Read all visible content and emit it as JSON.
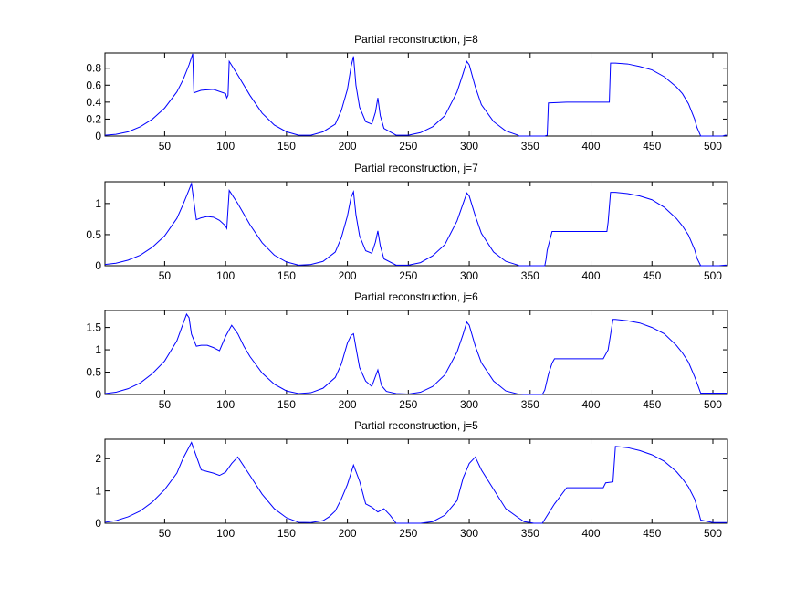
{
  "figure": {
    "background": "#ffffff",
    "line_color": "#0000ff"
  },
  "chart_data": [
    {
      "type": "line",
      "title": "Partial reconstruction, j=8",
      "xlim": [
        1,
        512
      ],
      "ylim": [
        0,
        0.98
      ],
      "xticks": [
        50,
        100,
        150,
        200,
        250,
        300,
        350,
        400,
        450,
        500
      ],
      "xtick_labels": [
        "50",
        "100",
        "150",
        "200",
        "250",
        "300",
        "350",
        "400",
        "450",
        "500"
      ],
      "yticks": [
        0,
        0.2,
        0.4,
        0.6,
        0.8
      ],
      "ytick_labels": [
        "0",
        "0.2",
        "0.4",
        "0.6",
        "0.8"
      ],
      "grid": false,
      "x": [
        1,
        10,
        20,
        30,
        40,
        50,
        60,
        65,
        70,
        73,
        74,
        80,
        90,
        100,
        101,
        102,
        103,
        110,
        120,
        130,
        140,
        150,
        160,
        170,
        180,
        190,
        195,
        200,
        203,
        205,
        207,
        210,
        215,
        220,
        223,
        225,
        227,
        230,
        240,
        250,
        260,
        270,
        280,
        290,
        295,
        298,
        300,
        305,
        310,
        320,
        330,
        340,
        341,
        362,
        364,
        365,
        380,
        400,
        415,
        416,
        420,
        430,
        440,
        450,
        460,
        470,
        475,
        480,
        485,
        487,
        490,
        500,
        505,
        508,
        510,
        512
      ],
      "values": [
        0.01,
        0.02,
        0.05,
        0.11,
        0.2,
        0.33,
        0.52,
        0.66,
        0.84,
        0.97,
        0.51,
        0.54,
        0.55,
        0.5,
        0.45,
        0.48,
        0.88,
        0.72,
        0.48,
        0.27,
        0.13,
        0.05,
        0.01,
        0.01,
        0.05,
        0.14,
        0.3,
        0.55,
        0.82,
        0.94,
        0.6,
        0.34,
        0.17,
        0.14,
        0.28,
        0.45,
        0.24,
        0.09,
        0.01,
        0.01,
        0.04,
        0.11,
        0.24,
        0.52,
        0.74,
        0.88,
        0.84,
        0.58,
        0.37,
        0.17,
        0.06,
        0.01,
        0.0,
        0.0,
        0.01,
        0.39,
        0.4,
        0.4,
        0.4,
        0.86,
        0.86,
        0.85,
        0.82,
        0.78,
        0.7,
        0.58,
        0.5,
        0.38,
        0.2,
        0.1,
        0.0,
        0.0,
        0.0,
        0.0,
        0.01,
        0.01
      ]
    },
    {
      "type": "line",
      "title": "Partial reconstruction, j=7",
      "xlim": [
        1,
        512
      ],
      "ylim": [
        0,
        1.35
      ],
      "xticks": [
        50,
        100,
        150,
        200,
        250,
        300,
        350,
        400,
        450,
        500
      ],
      "xtick_labels": [
        "50",
        "100",
        "150",
        "200",
        "250",
        "300",
        "350",
        "400",
        "450",
        "500"
      ],
      "yticks": [
        0,
        0.5,
        1
      ],
      "ytick_labels": [
        "0",
        "0.5",
        "1"
      ],
      "grid": false,
      "x": [
        1,
        10,
        20,
        30,
        40,
        50,
        60,
        65,
        70,
        72,
        76,
        80,
        85,
        90,
        95,
        100,
        101,
        103,
        110,
        120,
        130,
        140,
        150,
        160,
        170,
        180,
        190,
        195,
        200,
        203,
        205,
        207,
        210,
        215,
        220,
        223,
        225,
        227,
        230,
        240,
        250,
        260,
        270,
        280,
        290,
        295,
        298,
        300,
        305,
        310,
        320,
        330,
        340,
        341,
        362,
        363,
        364,
        368,
        380,
        400,
        413,
        414,
        416,
        420,
        430,
        440,
        450,
        460,
        470,
        475,
        480,
        485,
        487,
        490,
        500,
        505,
        510,
        512
      ],
      "values": [
        0.02,
        0.04,
        0.09,
        0.17,
        0.3,
        0.48,
        0.76,
        0.98,
        1.22,
        1.32,
        0.74,
        0.77,
        0.79,
        0.78,
        0.73,
        0.64,
        0.6,
        1.21,
        1.0,
        0.66,
        0.37,
        0.17,
        0.06,
        0.01,
        0.02,
        0.07,
        0.22,
        0.45,
        0.8,
        1.1,
        1.19,
        0.82,
        0.48,
        0.24,
        0.2,
        0.38,
        0.56,
        0.32,
        0.11,
        0.01,
        0.01,
        0.05,
        0.16,
        0.34,
        0.72,
        1.0,
        1.17,
        1.12,
        0.8,
        0.52,
        0.22,
        0.07,
        0.01,
        0.0,
        0.0,
        0.1,
        0.25,
        0.55,
        0.55,
        0.55,
        0.55,
        0.7,
        1.18,
        1.18,
        1.16,
        1.12,
        1.06,
        0.94,
        0.76,
        0.64,
        0.49,
        0.26,
        0.12,
        0.0,
        0.0,
        0.0,
        0.01,
        0.01
      ]
    },
    {
      "type": "line",
      "title": "Partial reconstruction, j=6",
      "xlim": [
        1,
        512
      ],
      "ylim": [
        0,
        1.88
      ],
      "xticks": [
        50,
        100,
        150,
        200,
        250,
        300,
        350,
        400,
        450,
        500
      ],
      "xtick_labels": [
        "50",
        "100",
        "150",
        "200",
        "250",
        "300",
        "350",
        "400",
        "450",
        "500"
      ],
      "yticks": [
        0,
        0.5,
        1,
        1.5
      ],
      "ytick_labels": [
        "0",
        "0.5",
        "1",
        "1.5"
      ],
      "grid": false,
      "x": [
        1,
        10,
        20,
        30,
        40,
        50,
        60,
        64,
        68,
        70,
        72,
        76,
        80,
        85,
        90,
        95,
        100,
        105,
        110,
        115,
        120,
        130,
        140,
        150,
        160,
        170,
        180,
        190,
        195,
        200,
        203,
        205,
        207,
        210,
        215,
        220,
        225,
        228,
        232,
        240,
        250,
        260,
        270,
        280,
        290,
        295,
        298,
        300,
        305,
        310,
        320,
        330,
        340,
        345,
        350,
        355,
        360,
        362,
        365,
        368,
        370,
        380,
        400,
        410,
        414,
        418,
        420,
        430,
        440,
        450,
        460,
        470,
        475,
        480,
        485,
        488,
        490,
        500,
        510,
        512
      ],
      "values": [
        0.02,
        0.05,
        0.13,
        0.26,
        0.47,
        0.75,
        1.2,
        1.5,
        1.8,
        1.72,
        1.35,
        1.08,
        1.1,
        1.1,
        1.05,
        0.98,
        1.3,
        1.55,
        1.36,
        1.08,
        0.85,
        0.48,
        0.23,
        0.08,
        0.02,
        0.04,
        0.14,
        0.38,
        0.68,
        1.15,
        1.32,
        1.36,
        1.05,
        0.6,
        0.3,
        0.18,
        0.55,
        0.2,
        0.07,
        0.02,
        0.01,
        0.05,
        0.18,
        0.44,
        0.95,
        1.35,
        1.62,
        1.55,
        1.08,
        0.71,
        0.3,
        0.08,
        0.01,
        0.0,
        0.0,
        0.0,
        0.0,
        0.1,
        0.45,
        0.7,
        0.8,
        0.8,
        0.8,
        0.8,
        1.0,
        1.68,
        1.68,
        1.65,
        1.6,
        1.5,
        1.36,
        1.1,
        0.93,
        0.72,
        0.4,
        0.18,
        0.03,
        0.03,
        0.03,
        0.03
      ]
    },
    {
      "type": "line",
      "title": "Partial reconstruction, j=5",
      "xlim": [
        1,
        512
      ],
      "ylim": [
        0,
        2.6
      ],
      "xticks": [
        50,
        100,
        150,
        200,
        250,
        300,
        350,
        400,
        450,
        500
      ],
      "xtick_labels": [
        "50",
        "100",
        "150",
        "200",
        "250",
        "300",
        "350",
        "400",
        "450",
        "500"
      ],
      "yticks": [
        0,
        1,
        2
      ],
      "ytick_labels": [
        "0",
        "1",
        "2"
      ],
      "grid": false,
      "x": [
        1,
        10,
        20,
        30,
        40,
        50,
        60,
        65,
        72,
        80,
        85,
        90,
        95,
        100,
        105,
        110,
        120,
        130,
        140,
        150,
        160,
        170,
        180,
        185,
        190,
        195,
        200,
        205,
        210,
        215,
        220,
        225,
        230,
        235,
        240,
        245,
        250,
        260,
        270,
        280,
        290,
        295,
        300,
        305,
        310,
        320,
        330,
        340,
        345,
        350,
        353,
        360,
        365,
        370,
        380,
        400,
        410,
        412,
        418,
        420,
        430,
        440,
        450,
        460,
        470,
        475,
        480,
        485,
        488,
        490,
        500,
        510,
        512
      ],
      "values": [
        0.03,
        0.08,
        0.2,
        0.38,
        0.66,
        1.04,
        1.55,
        2.0,
        2.5,
        1.65,
        1.6,
        1.55,
        1.48,
        1.58,
        1.85,
        2.05,
        1.48,
        0.9,
        0.45,
        0.17,
        0.03,
        0.02,
        0.08,
        0.2,
        0.38,
        0.75,
        1.2,
        1.8,
        1.3,
        0.6,
        0.5,
        0.35,
        0.45,
        0.25,
        0.0,
        0.0,
        0.0,
        0.0,
        0.05,
        0.25,
        0.7,
        1.4,
        1.85,
        2.05,
        1.65,
        1.05,
        0.45,
        0.18,
        0.05,
        0.02,
        0.0,
        0.0,
        0.3,
        0.6,
        1.1,
        1.1,
        1.1,
        1.25,
        1.28,
        2.38,
        2.34,
        2.25,
        2.12,
        1.92,
        1.6,
        1.38,
        1.12,
        0.75,
        0.38,
        0.1,
        0.02,
        0.02,
        0.02
      ]
    }
  ]
}
